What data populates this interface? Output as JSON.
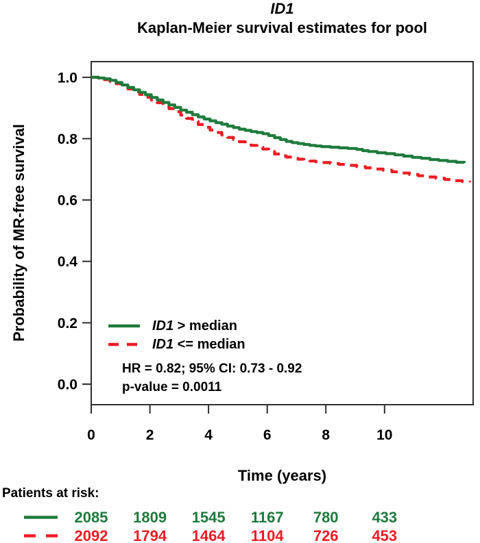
{
  "header": {
    "title": "ID1",
    "subtitle": "Kaplan-Meier survival estimates for pool"
  },
  "axes": {
    "x_label": "Time (years)",
    "y_label": "Probability of MR-free survival"
  },
  "legend": {
    "items": [
      {
        "gene": "ID1",
        "rest": " > median"
      },
      {
        "gene": "ID1",
        "rest": " <= median"
      }
    ]
  },
  "annotations": {
    "hr": "HR = 0.82; 95% CI: 0.73 - 0.92",
    "p_value": "p-value = 0.0011"
  },
  "risk_table": {
    "label": "Patients at risk:",
    "rows": [
      {
        "group": "ID1 > median",
        "color": "#1E7B3C",
        "style": "solid",
        "values": [
          2085,
          1809,
          1545,
          1167,
          780,
          433
        ]
      },
      {
        "group": "ID1 <= median",
        "color": "#EC1C24",
        "style": "dashed",
        "values": [
          2092,
          1794,
          1464,
          1104,
          726,
          453
        ]
      }
    ]
  },
  "colors": {
    "group_high": "#1E7B3C",
    "group_low": "#EC1C24",
    "frame": "#2e2e2e",
    "text": "#000000"
  },
  "chart_data": {
    "type": "line",
    "title": "ID1",
    "subtitle": "Kaplan-Meier survival estimates for pool",
    "xlabel": "Time (years)",
    "ylabel": "Probability of MR-free survival",
    "xlim": [
      0,
      13.02
    ],
    "ylim": [
      -0.067,
      1.051
    ],
    "x_ticks": [
      0,
      2,
      4,
      6,
      8,
      10
    ],
    "x_tick_labels": [
      "0",
      "2",
      "4",
      "6",
      "8",
      "10"
    ],
    "y_ticks": [
      0.0,
      0.2,
      0.4,
      0.6,
      0.8,
      1.0
    ],
    "y_tick_labels": [
      "0.0",
      "0.2",
      "0.4",
      "0.6",
      "0.8",
      "1.0"
    ],
    "grid": false,
    "legend_position": "inside-lower-left",
    "annotations": [
      "HR = 0.82; 95% CI: 0.73 - 0.92",
      "p-value = 0.0011"
    ],
    "series": [
      {
        "name": "ID1 > median",
        "color": "#1E7B3C",
        "style": "solid",
        "points": [
          [
            0,
            1.0
          ],
          [
            0.25,
            0.998
          ],
          [
            0.45,
            0.995
          ],
          [
            0.65,
            0.99
          ],
          [
            0.85,
            0.983
          ],
          [
            1.05,
            0.975
          ],
          [
            1.25,
            0.967
          ],
          [
            1.45,
            0.959
          ],
          [
            1.65,
            0.951
          ],
          [
            1.85,
            0.943
          ],
          [
            2.05,
            0.934
          ],
          [
            2.25,
            0.926
          ],
          [
            2.45,
            0.918
          ],
          [
            2.65,
            0.91
          ],
          [
            2.85,
            0.902
          ],
          [
            3.05,
            0.893
          ],
          [
            3.25,
            0.886
          ],
          [
            3.45,
            0.878
          ],
          [
            3.65,
            0.871
          ],
          [
            3.85,
            0.864
          ],
          [
            4.05,
            0.858
          ],
          [
            4.25,
            0.852
          ],
          [
            4.45,
            0.847
          ],
          [
            4.65,
            0.841
          ],
          [
            4.85,
            0.836
          ],
          [
            5.05,
            0.831
          ],
          [
            5.25,
            0.827
          ],
          [
            5.45,
            0.823
          ],
          [
            5.65,
            0.82
          ],
          [
            5.85,
            0.816
          ],
          [
            6.05,
            0.81
          ],
          [
            6.25,
            0.803
          ],
          [
            6.45,
            0.797
          ],
          [
            6.65,
            0.791
          ],
          [
            6.85,
            0.787
          ],
          [
            7.05,
            0.784
          ],
          [
            7.25,
            0.781
          ],
          [
            7.45,
            0.778
          ],
          [
            7.65,
            0.776
          ],
          [
            7.85,
            0.774
          ],
          [
            8.15,
            0.772
          ],
          [
            8.45,
            0.77
          ],
          [
            8.75,
            0.768
          ],
          [
            9.05,
            0.765
          ],
          [
            9.25,
            0.761
          ],
          [
            9.45,
            0.758
          ],
          [
            9.75,
            0.754
          ],
          [
            10.05,
            0.751
          ],
          [
            10.35,
            0.747
          ],
          [
            10.65,
            0.743
          ],
          [
            10.95,
            0.739
          ],
          [
            11.25,
            0.736
          ],
          [
            11.55,
            0.732
          ],
          [
            11.85,
            0.729
          ],
          [
            12.15,
            0.726
          ],
          [
            12.45,
            0.723
          ],
          [
            12.72,
            0.721
          ]
        ]
      },
      {
        "name": "ID1 <= median",
        "color": "#EC1C24",
        "style": "dashed",
        "points": [
          [
            0,
            1.0
          ],
          [
            0.25,
            0.997
          ],
          [
            0.45,
            0.992
          ],
          [
            0.65,
            0.986
          ],
          [
            0.85,
            0.979
          ],
          [
            1.05,
            0.971
          ],
          [
            1.25,
            0.962
          ],
          [
            1.45,
            0.953
          ],
          [
            1.65,
            0.944
          ],
          [
            1.85,
            0.935
          ],
          [
            2.05,
            0.926
          ],
          [
            2.25,
            0.917
          ],
          [
            2.45,
            0.908
          ],
          [
            2.65,
            0.898
          ],
          [
            2.85,
            0.888
          ],
          [
            3.05,
            0.877
          ],
          [
            3.25,
            0.866
          ],
          [
            3.45,
            0.856
          ],
          [
            3.65,
            0.846
          ],
          [
            3.85,
            0.837
          ],
          [
            4.05,
            0.828
          ],
          [
            4.25,
            0.82
          ],
          [
            4.45,
            0.812
          ],
          [
            4.65,
            0.804
          ],
          [
            4.85,
            0.797
          ],
          [
            5.05,
            0.79
          ],
          [
            5.25,
            0.784
          ],
          [
            5.45,
            0.778
          ],
          [
            5.65,
            0.772
          ],
          [
            5.85,
            0.766
          ],
          [
            6.05,
            0.758
          ],
          [
            6.25,
            0.75
          ],
          [
            6.45,
            0.744
          ],
          [
            6.65,
            0.74
          ],
          [
            6.85,
            0.736
          ],
          [
            7.05,
            0.733
          ],
          [
            7.25,
            0.73
          ],
          [
            7.45,
            0.727
          ],
          [
            7.65,
            0.725
          ],
          [
            7.85,
            0.722
          ],
          [
            8.15,
            0.719
          ],
          [
            8.45,
            0.716
          ],
          [
            8.75,
            0.713
          ],
          [
            9.05,
            0.709
          ],
          [
            9.35,
            0.705
          ],
          [
            9.65,
            0.701
          ],
          [
            9.95,
            0.697
          ],
          [
            10.25,
            0.692
          ],
          [
            10.55,
            0.688
          ],
          [
            10.85,
            0.683
          ],
          [
            11.15,
            0.679
          ],
          [
            11.45,
            0.675
          ],
          [
            11.75,
            0.671
          ],
          [
            12.05,
            0.667
          ],
          [
            12.35,
            0.663
          ],
          [
            12.65,
            0.66
          ],
          [
            12.9,
            0.658
          ]
        ]
      }
    ]
  }
}
